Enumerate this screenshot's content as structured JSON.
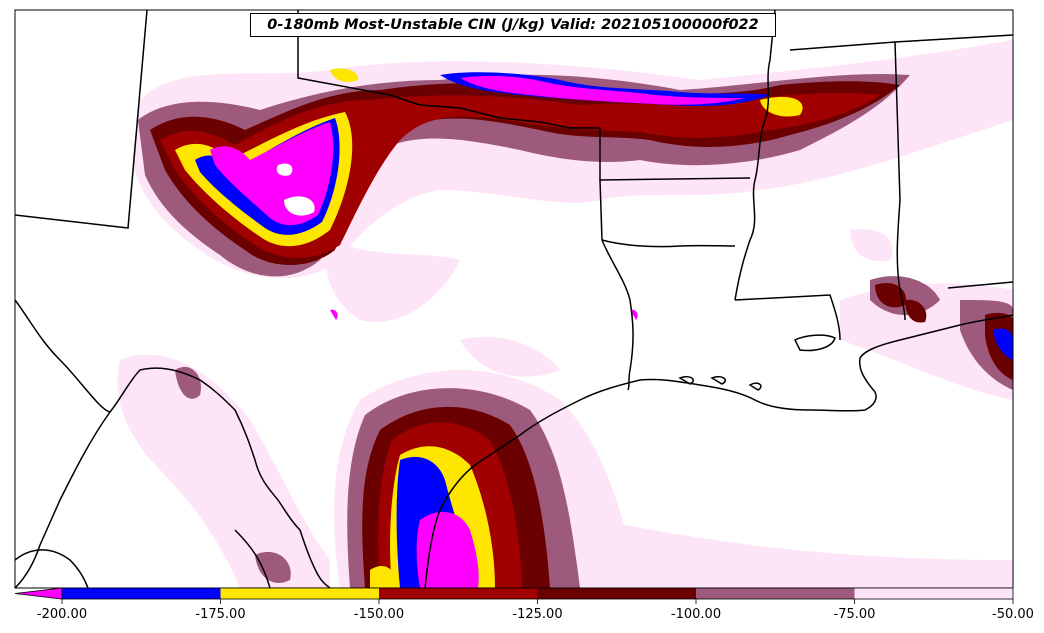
{
  "title": "0-180mb Most-Unstable CIN (J/kg) Valid: 202105100000f022",
  "colorbar": {
    "extend": "min",
    "ticks": [
      "-200.00",
      "-175.00",
      "-150.00",
      "-125.00",
      "-100.00",
      "-75.00",
      "-50.00"
    ],
    "bins": [
      {
        "range": "< -200",
        "color": "#ff00ff"
      },
      {
        "range": "-200 to -175",
        "color": "#0000ff"
      },
      {
        "range": "-175 to -150",
        "color": "#ffe600"
      },
      {
        "range": "-150 to -125",
        "color": "#a00000"
      },
      {
        "range": "-125 to -100",
        "color": "#6a0000"
      },
      {
        "range": "-100 to -75",
        "color": "#9e5a7c"
      },
      {
        "range": "-75 to -50",
        "color": "#fde4f7"
      }
    ]
  },
  "map": {
    "features": [
      "state boundaries",
      "coastline",
      "international border"
    ],
    "background_color": "#ffffff"
  }
}
